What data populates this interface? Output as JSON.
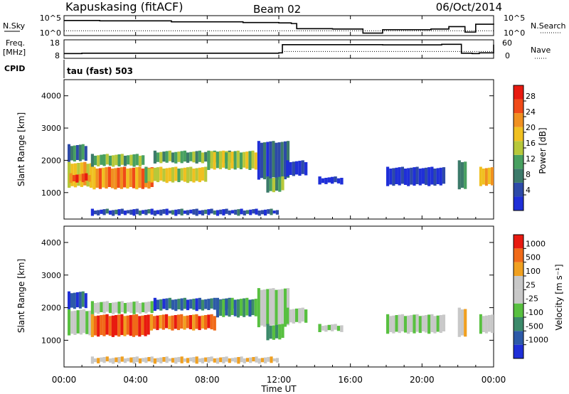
{
  "header": {
    "title": "Kapuskasing (fitACF)",
    "beam": "Beam 02",
    "date": "06/Oct/2014"
  },
  "strip_labels": {
    "nsky": "N.Sky",
    "nsearch": "N.Search",
    "freq_line1": "Freq.",
    "freq_line2": "[MHz]",
    "nave": "Nave",
    "cpid": "CPID",
    "cpid_value": "tau (fast) 503",
    "top_left_ticks": [
      "10^5",
      "10^0"
    ],
    "top_right_ticks": [
      "10^5",
      "10^0"
    ],
    "freq_ticks": [
      "18",
      "8"
    ],
    "nave_ticks": [
      "60",
      "0"
    ]
  },
  "colors": {
    "power_scale": [
      "#1f2fd8",
      "#2d4aa8",
      "#3c7a6a",
      "#48a060",
      "#b7c83a",
      "#f0c020",
      "#f09020",
      "#f04a18",
      "#e81a10"
    ],
    "velocity_scale": [
      "#1f2fd8",
      "#2d5aa8",
      "#3c8a6a",
      "#58c040",
      "#c8c8c8",
      "#c8c8c8",
      "#f0a020",
      "#f06a18",
      "#e81a10"
    ]
  },
  "chart_data": [
    {
      "type": "line",
      "name": "noise-sky-search",
      "x_unit": "UT hours",
      "series": [
        {
          "name": "N.Sky",
          "x": [
            0.0,
            0.5,
            2.0,
            6.0,
            10.0,
            12.0,
            12.7,
            13.0,
            15.0,
            16.7,
            17.8,
            20.5,
            21.5,
            22.4,
            23.0,
            24.0
          ],
          "y": [
            4.0,
            4.0,
            3.9,
            3.6,
            3.4,
            3.3,
            3.1,
            1.6,
            1.5,
            0.3,
            1.3,
            1.5,
            2.2,
            0.6,
            2.9,
            3.1
          ]
        },
        {
          "name": "N.Search",
          "x": [
            0.0,
            24.0
          ],
          "y": [
            1.0,
            1.0
          ]
        }
      ],
      "ylabel": "N.Sky"
    },
    {
      "type": "line",
      "name": "frequency-nave",
      "x_unit": "UT hours",
      "series": [
        {
          "name": "Freq.",
          "x": [
            0.0,
            1.0,
            11.0,
            12.0,
            12.2,
            16.7,
            17.8,
            21.1,
            22.2,
            22.8,
            23.2,
            24.0
          ],
          "y": [
            10.8,
            11.0,
            11.0,
            11.2,
            16.0,
            16.0,
            15.9,
            16.2,
            11.0,
            10.8,
            11.2,
            16.0
          ]
        },
        {
          "name": "Nave",
          "x": [
            12.2,
            16.7,
            17.8,
            24.0
          ],
          "y": [
            12,
            12,
            12,
            12
          ]
        }
      ],
      "ylim": [
        8,
        18
      ]
    },
    {
      "type": "heatmap",
      "name": "power",
      "xlabel": "Time UT",
      "ylabel": "Slant Range [km]",
      "x_ticks": [
        "00:00",
        "04:00",
        "08:00",
        "12:00",
        "16:00",
        "20:00",
        "00:00"
      ],
      "y_ticks": [
        "1000",
        "2000",
        "3000",
        "4000"
      ],
      "xlim": [
        0,
        24
      ],
      "ylim": [
        180,
        4500
      ],
      "colorbar_label": "Power [dB]",
      "colorbar_ticks": [
        "4",
        "8",
        "12",
        "16",
        "20",
        "24",
        "28"
      ],
      "regions": [
        {
          "t0": 0.2,
          "t1": 1.3,
          "r0": 1950,
          "r1": 2500,
          "level": 0.3
        },
        {
          "t0": 0.2,
          "t1": 1.6,
          "r0": 1150,
          "r1": 1950,
          "level": 0.6
        },
        {
          "t0": 0.3,
          "t1": 1.5,
          "r0": 1300,
          "r1": 1600,
          "level": 0.85
        },
        {
          "t0": 1.5,
          "t1": 4.5,
          "r0": 1800,
          "r1": 2200,
          "level": 0.45
        },
        {
          "t0": 1.6,
          "t1": 5.0,
          "r0": 1100,
          "r1": 1800,
          "level": 0.75
        },
        {
          "t0": 4.5,
          "t1": 8.0,
          "r0": 1300,
          "r1": 1800,
          "level": 0.55
        },
        {
          "t0": 5.0,
          "t1": 9.5,
          "r0": 1900,
          "r1": 2300,
          "level": 0.4
        },
        {
          "t0": 8.0,
          "t1": 10.8,
          "r0": 1700,
          "r1": 2300,
          "level": 0.5
        },
        {
          "t0": 10.8,
          "t1": 12.6,
          "r0": 1400,
          "r1": 2600,
          "level": 0.2
        },
        {
          "t0": 11.3,
          "t1": 12.3,
          "r0": 1000,
          "r1": 1500,
          "level": 0.4
        },
        {
          "t0": 12.4,
          "t1": 13.6,
          "r0": 1500,
          "r1": 2000,
          "level": 0.1
        },
        {
          "t0": 14.2,
          "t1": 15.6,
          "r0": 1250,
          "r1": 1500,
          "level": 0.05
        },
        {
          "t0": 18.0,
          "t1": 21.3,
          "r0": 1200,
          "r1": 1800,
          "level": 0.08
        },
        {
          "t0": 22.0,
          "t1": 22.5,
          "r0": 1100,
          "r1": 2000,
          "level": 0.35
        },
        {
          "t0": 23.2,
          "t1": 24.0,
          "r0": 1200,
          "r1": 1800,
          "level": 0.7
        },
        {
          "t0": 1.5,
          "t1": 12.0,
          "r0": 280,
          "r1": 500,
          "level": 0.15
        }
      ]
    },
    {
      "type": "heatmap",
      "name": "velocity",
      "xlabel": "Time UT",
      "ylabel": "Slant Range [km]",
      "x_ticks": [
        "00:00",
        "04:00",
        "08:00",
        "12:00",
        "16:00",
        "20:00",
        "00:00"
      ],
      "y_ticks": [
        "1000",
        "2000",
        "3000",
        "4000"
      ],
      "xlim": [
        0,
        24
      ],
      "ylim": [
        180,
        4500
      ],
      "colorbar_label": "Velocity [m s⁻¹]",
      "colorbar_ticks": [
        "1000",
        "500",
        "100",
        "25",
        "-25",
        "-100",
        "-500",
        "-1000"
      ],
      "regions": [
        {
          "t0": 0.2,
          "t1": 1.3,
          "r0": 1950,
          "r1": 2500,
          "level": 0.15
        },
        {
          "t0": 0.2,
          "t1": 1.7,
          "r0": 1150,
          "r1": 1950,
          "level": 0.5
        },
        {
          "t0": 1.5,
          "t1": 4.8,
          "r0": 1100,
          "r1": 1800,
          "level": 0.9
        },
        {
          "t0": 1.5,
          "t1": 5.0,
          "r0": 1800,
          "r1": 2200,
          "level": 0.5
        },
        {
          "t0": 4.8,
          "t1": 8.5,
          "r0": 1300,
          "r1": 1800,
          "level": 0.85
        },
        {
          "t0": 5.0,
          "t1": 9.5,
          "r0": 1900,
          "r1": 2300,
          "level": 0.2
        },
        {
          "t0": 8.5,
          "t1": 10.8,
          "r0": 1700,
          "r1": 2300,
          "level": 0.3
        },
        {
          "t0": 10.8,
          "t1": 12.6,
          "r0": 1400,
          "r1": 2600,
          "level": 0.5
        },
        {
          "t0": 11.3,
          "t1": 12.3,
          "r0": 1000,
          "r1": 1500,
          "level": 0.35
        },
        {
          "t0": 12.4,
          "t1": 13.6,
          "r0": 1500,
          "r1": 2000,
          "level": 0.5
        },
        {
          "t0": 14.2,
          "t1": 15.6,
          "r0": 1250,
          "r1": 1500,
          "level": 0.5
        },
        {
          "t0": 18.0,
          "t1": 21.3,
          "r0": 1200,
          "r1": 1800,
          "level": 0.5
        },
        {
          "t0": 22.0,
          "t1": 22.5,
          "r0": 1100,
          "r1": 2000,
          "level": 0.7
        },
        {
          "t0": 23.2,
          "t1": 24.0,
          "r0": 1200,
          "r1": 1800,
          "level": 0.55
        },
        {
          "t0": 1.5,
          "t1": 12.0,
          "r0": 280,
          "r1": 500,
          "level": 0.65
        }
      ]
    }
  ]
}
